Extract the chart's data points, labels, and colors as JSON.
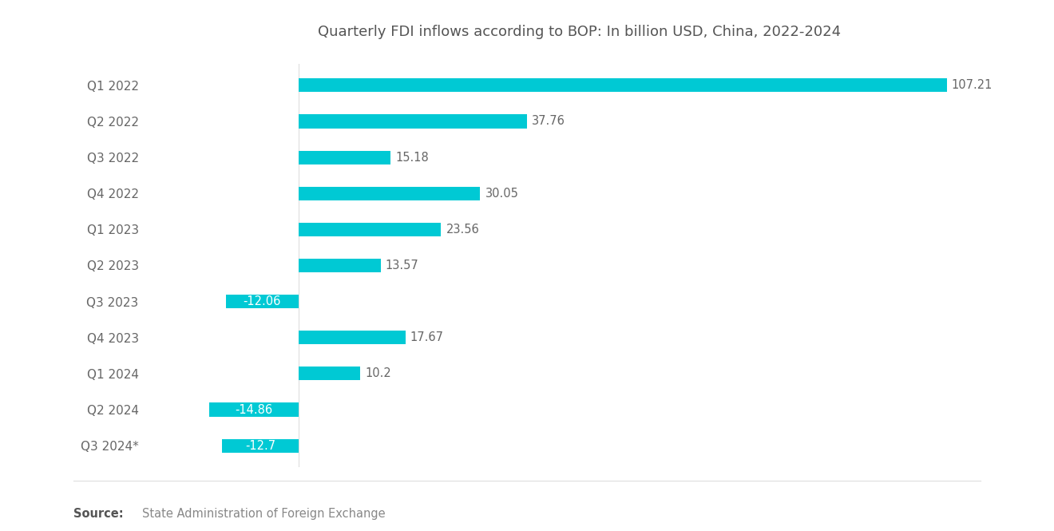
{
  "title": "Quarterly FDI inflows according to BOP: In billion USD, China, 2022-2024",
  "categories": [
    "Q1 2022",
    "Q2 2022",
    "Q3 2022",
    "Q4 2022",
    "Q1 2023",
    "Q2 2023",
    "Q3 2023",
    "Q4 2023",
    "Q1 2024",
    "Q2 2024",
    "Q3 2024*"
  ],
  "values": [
    107.21,
    37.76,
    15.18,
    30.05,
    23.56,
    13.57,
    -12.06,
    17.67,
    10.2,
    -14.86,
    -12.7
  ],
  "bar_color": "#00C9D4",
  "label_color": "#666666",
  "title_color": "#555555",
  "source_bold": "Source:",
  "source_text": "State Administration of Foreign Exchange",
  "source_color": "#888888",
  "source_bold_color": "#555555",
  "background_color": "#ffffff",
  "title_fontsize": 13,
  "label_fontsize": 11,
  "value_fontsize": 10.5,
  "source_fontsize": 10.5,
  "bar_height": 0.38,
  "xlim_min": -25,
  "xlim_max": 118,
  "zero_line_x": 0
}
